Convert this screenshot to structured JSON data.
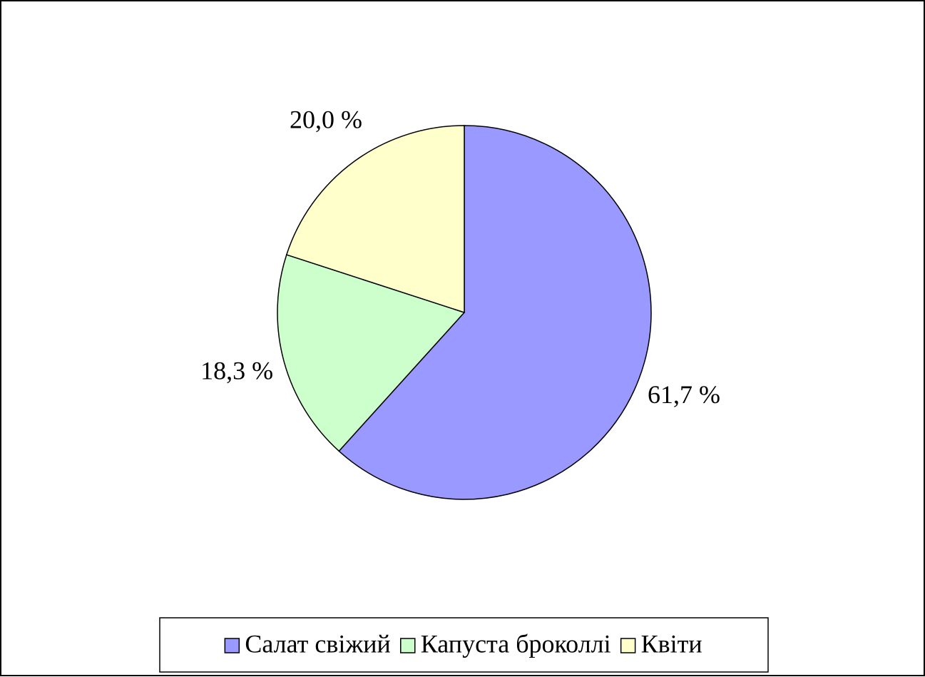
{
  "chart_data": {
    "type": "pie",
    "categories": [
      "Салат свіжий",
      "Капуста броколлі",
      "Квіти"
    ],
    "values": [
      61.7,
      18.3,
      20.0
    ],
    "value_labels": [
      "61,7 %",
      "18,3 %",
      "20,0 %"
    ],
    "colors": [
      "#9999ff",
      "#ccffcc",
      "#ffffcc"
    ],
    "legend": "bottom"
  }
}
